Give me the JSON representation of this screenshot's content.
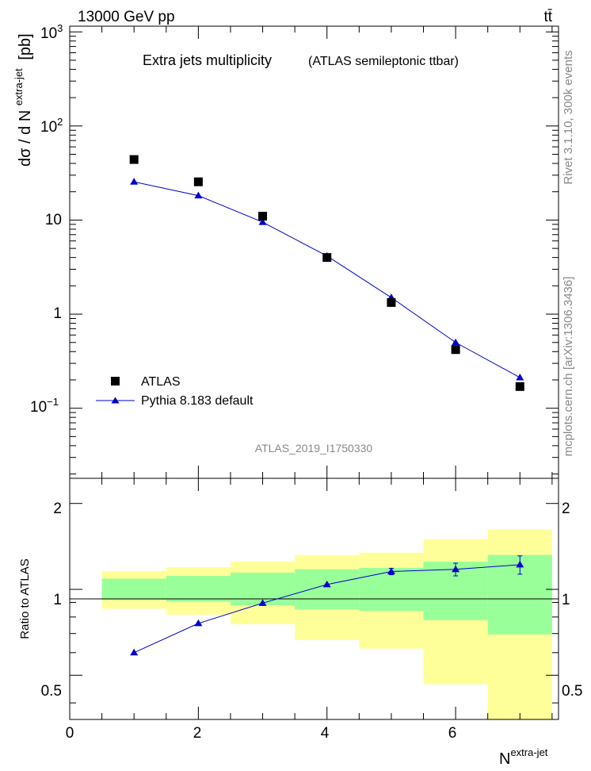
{
  "header": {
    "left": "13000 GeV pp",
    "right": "tt̄",
    "side_top": "Rivet 3.1.10,  300k events",
    "side_bottom": "mcplots.cern.ch [arXiv:1306.3436]"
  },
  "main_panel": {
    "title": "Extra jets multiplicity",
    "subtitle": "(ATLAS semileptonic ttbar)",
    "ylabel": "dσ / d N",
    "ylabel_sup": "extra-jet",
    "ylabel_unit": "[pb]",
    "watermark": "ATLAS_2019_I1750330",
    "ytick_labels": {
      "t1000": "10",
      "t1000_sup": "3",
      "t100": "10",
      "t100_sup": "2",
      "t10": "10",
      "t1": "1",
      "t01": "10",
      "t01_sup": "−1"
    }
  },
  "legend": {
    "atlas": "ATLAS",
    "pythia": "Pythia 8.183 default"
  },
  "ratio_panel": {
    "ylabel": "Ratio to ATLAS",
    "ytick_labels": [
      "0.5",
      "1",
      "2"
    ]
  },
  "xaxis": {
    "label": "N",
    "label_sup": "extra-jet",
    "tick_labels": [
      "0",
      "2",
      "4",
      "6"
    ]
  },
  "colors": {
    "data": "#000000",
    "mc": "#0000cc",
    "band_inner": "#99ff99",
    "band_outer": "#ffff99"
  },
  "chart_data": [
    {
      "type": "scatter",
      "title": "Extra jets multiplicity",
      "xlabel": "N extra-jet",
      "ylabel": "dσ / d N extra-jet [pb]",
      "yscale": "log",
      "xlim": [
        0,
        7.6
      ],
      "ylim": [
        0.018,
        1150
      ],
      "series": [
        {
          "name": "ATLAS",
          "x": [
            1,
            2,
            3,
            4,
            5,
            6,
            7
          ],
          "y": [
            44,
            25.5,
            11,
            4.0,
            1.33,
            0.42,
            0.17
          ]
        },
        {
          "name": "Pythia 8.183 default",
          "x": [
            1,
            2,
            3,
            4,
            5,
            6,
            7
          ],
          "y": [
            25.5,
            18.2,
            9.5,
            4.15,
            1.5,
            0.5,
            0.212
          ]
        }
      ]
    },
    {
      "type": "line",
      "ylabel": "Ratio to ATLAS",
      "yscale": "log",
      "xlim": [
        0,
        7.6
      ],
      "ylim": [
        0.35,
        2.45
      ],
      "bins": [
        {
          "lo": 0.5,
          "hi": 1.5,
          "inner": [
            0.92,
            1.09
          ],
          "outer": [
            0.855,
            1.16
          ],
          "mc": 0.6,
          "err": 0
        },
        {
          "lo": 1.5,
          "hi": 2.5,
          "inner": [
            0.905,
            1.115
          ],
          "outer": [
            0.815,
            1.195
          ],
          "mc": 0.76,
          "err": 0
        },
        {
          "lo": 2.5,
          "hi": 3.5,
          "inner": [
            0.88,
            1.145
          ],
          "outer": [
            0.755,
            1.25
          ],
          "mc": 0.895,
          "err": 0
        },
        {
          "lo": 3.5,
          "hi": 4.5,
          "inner": [
            0.85,
            1.175
          ],
          "outer": [
            0.665,
            1.32
          ],
          "mc": 1.04,
          "err": 0
        },
        {
          "lo": 4.5,
          "hi": 5.5,
          "inner": [
            0.84,
            1.19
          ],
          "outer": [
            0.62,
            1.345
          ],
          "mc": 1.155,
          "err": 0.03
        },
        {
          "lo": 5.5,
          "hi": 6.5,
          "inner": [
            0.78,
            1.25
          ],
          "outer": [
            0.465,
            1.5
          ],
          "mc": 1.175,
          "err": 0.06
        },
        {
          "lo": 6.5,
          "hi": 7.5,
          "inner": [
            0.695,
            1.32
          ],
          "outer": [
            0.35,
            1.62
          ],
          "mc": 1.22,
          "err": 0.09
        }
      ]
    }
  ]
}
